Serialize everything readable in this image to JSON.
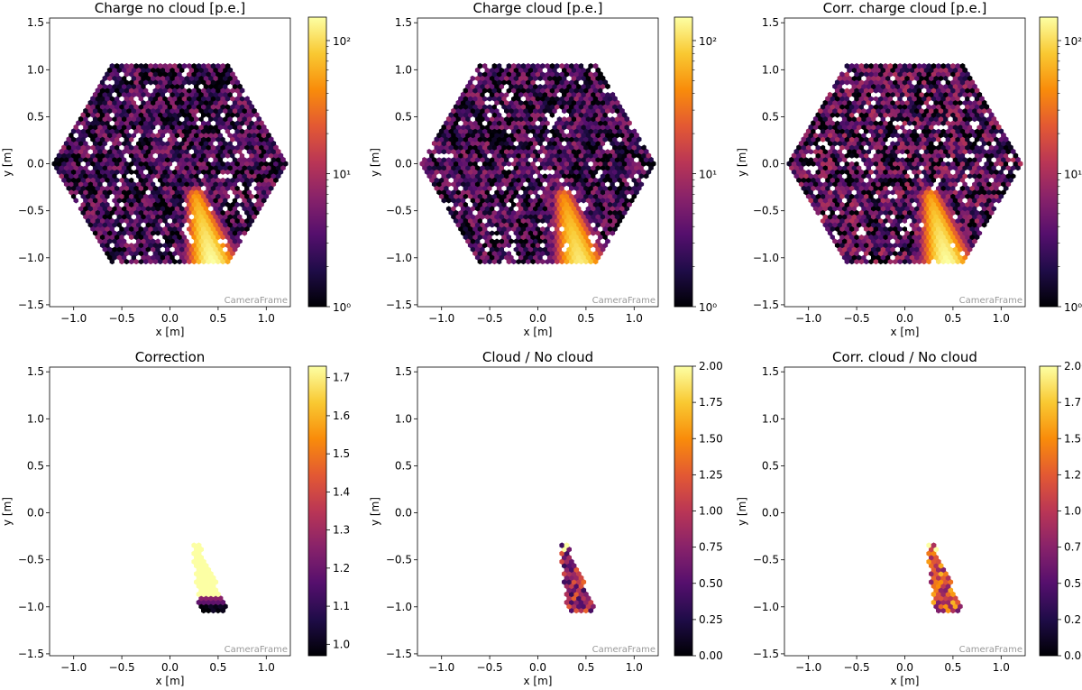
{
  "chart_data": [
    {
      "type": "heatmap",
      "title": "Charge no cloud [p.e.]",
      "xlabel": "x [m]",
      "ylabel": "y [m]",
      "xlim": [
        -1.25,
        1.25
      ],
      "ylim": [
        -1.52,
        1.55
      ],
      "xticks": [
        -1.0,
        -0.5,
        0.0,
        0.5,
        1.0
      ],
      "xtick_labels": [
        "−1.0",
        "−0.5",
        "0.0",
        "0.5",
        "1.0"
      ],
      "yticks": [
        -1.5,
        -1.0,
        -0.5,
        0.0,
        0.5,
        1.0,
        1.5
      ],
      "ytick_labels": [
        "−1.5",
        "−1.0",
        "−0.5",
        "0.0",
        "0.5",
        "1.0",
        "1.5"
      ],
      "annotation": "CameraFrame",
      "colorbar": {
        "scale": "log",
        "range": [
          1,
          150
        ],
        "ticks": [
          1,
          10,
          100
        ],
        "tick_labels": [
          "10⁰",
          "10¹",
          "10²"
        ],
        "colormap": "inferno"
      },
      "camera": {
        "shape": "hexagon",
        "radius": 1.23,
        "pixel_spacing": 0.05
      },
      "image_track": {
        "from": [
          0.27,
          -0.35
        ],
        "to": [
          0.44,
          -1.05
        ],
        "peak_value": 150
      },
      "noise_level": 2.5
    },
    {
      "type": "heatmap",
      "title": "Charge cloud [p.e.]",
      "xlabel": "x [m]",
      "ylabel": "y [m]",
      "xlim": [
        -1.25,
        1.25
      ],
      "ylim": [
        -1.52,
        1.55
      ],
      "xticks": [
        -1.0,
        -0.5,
        0.0,
        0.5,
        1.0
      ],
      "xtick_labels": [
        "−1.0",
        "−0.5",
        "0.0",
        "0.5",
        "1.0"
      ],
      "yticks": [
        -1.5,
        -1.0,
        -0.5,
        0.0,
        0.5,
        1.0,
        1.5
      ],
      "ytick_labels": [
        "−1.5",
        "−1.0",
        "−0.5",
        "0.0",
        "0.5",
        "1.0",
        "1.5"
      ],
      "annotation": "CameraFrame",
      "colorbar": {
        "scale": "log",
        "range": [
          1,
          150
        ],
        "ticks": [
          1,
          10,
          100
        ],
        "tick_labels": [
          "10⁰",
          "10¹",
          "10²"
        ],
        "colormap": "inferno"
      },
      "camera": {
        "shape": "hexagon",
        "radius": 1.23,
        "pixel_spacing": 0.05
      },
      "image_track": {
        "from": [
          0.27,
          -0.35
        ],
        "to": [
          0.44,
          -1.05
        ],
        "peak_value": 120
      },
      "noise_level": 2.5
    },
    {
      "type": "heatmap",
      "title": "Corr. charge cloud [p.e.]",
      "xlabel": "x [m]",
      "ylabel": "y [m]",
      "xlim": [
        -1.25,
        1.25
      ],
      "ylim": [
        -1.52,
        1.55
      ],
      "xticks": [
        -1.0,
        -0.5,
        0.0,
        0.5,
        1.0
      ],
      "xtick_labels": [
        "−1.0",
        "−0.5",
        "0.0",
        "0.5",
        "1.0"
      ],
      "yticks": [
        -1.5,
        -1.0,
        -0.5,
        0.0,
        0.5,
        1.0,
        1.5
      ],
      "ytick_labels": [
        "−1.5",
        "−1.0",
        "−0.5",
        "0.0",
        "0.5",
        "1.0",
        "1.5"
      ],
      "annotation": "CameraFrame",
      "colorbar": {
        "scale": "log",
        "range": [
          1,
          150
        ],
        "ticks": [
          1,
          10,
          100
        ],
        "tick_labels": [
          "10⁰",
          "10¹",
          "10²"
        ],
        "colormap": "inferno"
      },
      "camera": {
        "shape": "hexagon",
        "radius": 1.23,
        "pixel_spacing": 0.05
      },
      "image_track": {
        "from": [
          0.27,
          -0.35
        ],
        "to": [
          0.44,
          -1.05
        ],
        "peak_value": 150
      },
      "noise_level": 3.5
    },
    {
      "type": "heatmap",
      "title": "Correction",
      "xlabel": "x [m]",
      "ylabel": "y [m]",
      "xlim": [
        -1.25,
        1.25
      ],
      "ylim": [
        -1.52,
        1.55
      ],
      "xticks": [
        -1.0,
        -0.5,
        0.0,
        0.5,
        1.0
      ],
      "xtick_labels": [
        "−1.0",
        "−0.5",
        "0.0",
        "0.5",
        "1.0"
      ],
      "yticks": [
        -1.5,
        -1.0,
        -0.5,
        0.0,
        0.5,
        1.0,
        1.5
      ],
      "ytick_labels": [
        "−1.5",
        "−1.0",
        "−0.5",
        "0.0",
        "0.5",
        "1.0",
        "1.5"
      ],
      "annotation": "CameraFrame",
      "colorbar": {
        "scale": "linear",
        "range": [
          0.97,
          1.73
        ],
        "ticks": [
          1.0,
          1.1,
          1.2,
          1.3,
          1.4,
          1.5,
          1.6,
          1.7
        ],
        "tick_labels": [
          "1.0",
          "1.1",
          "1.2",
          "1.3",
          "1.4",
          "1.5",
          "1.6",
          "1.7"
        ],
        "colormap": "inferno"
      },
      "region": {
        "from": [
          0.27,
          -0.37
        ],
        "to": [
          0.44,
          -1.0
        ]
      },
      "region_values": {
        "high": 1.73,
        "high_above_y": -0.88,
        "gradient_from": 1.0,
        "gradient_to": 1.3
      }
    },
    {
      "type": "heatmap",
      "title": "Cloud / No cloud",
      "xlabel": "x [m]",
      "ylabel": "y [m]",
      "xlim": [
        -1.25,
        1.25
      ],
      "ylim": [
        -1.52,
        1.55
      ],
      "xticks": [
        -1.0,
        -0.5,
        0.0,
        0.5,
        1.0
      ],
      "xtick_labels": [
        "−1.0",
        "−0.5",
        "0.0",
        "0.5",
        "1.0"
      ],
      "yticks": [
        -1.5,
        -1.0,
        -0.5,
        0.0,
        0.5,
        1.0,
        1.5
      ],
      "ytick_labels": [
        "−1.5",
        "−1.0",
        "−0.5",
        "0.0",
        "0.5",
        "1.0",
        "1.5"
      ],
      "annotation": "CameraFrame",
      "colorbar": {
        "scale": "linear",
        "range": [
          0,
          2
        ],
        "ticks": [
          0,
          0.25,
          0.5,
          0.75,
          1.0,
          1.25,
          1.5,
          1.75,
          2.0
        ],
        "tick_labels": [
          "0.00",
          "0.25",
          "0.50",
          "0.75",
          "1.00",
          "1.25",
          "1.50",
          "1.75",
          "2.00"
        ],
        "colormap": "inferno"
      },
      "region": {
        "from": [
          0.27,
          -0.37
        ],
        "to": [
          0.44,
          -1.0
        ]
      },
      "region_values": {
        "mean": 0.85,
        "spread": 0.5
      }
    },
    {
      "type": "heatmap",
      "title": "Corr. cloud / No cloud",
      "xlabel": "x [m]",
      "ylabel": "y [m]",
      "xlim": [
        -1.25,
        1.25
      ],
      "ylim": [
        -1.52,
        1.55
      ],
      "xticks": [
        -1.0,
        -0.5,
        0.0,
        0.5,
        1.0
      ],
      "xtick_labels": [
        "−1.0",
        "−0.5",
        "0.0",
        "0.5",
        "1.0"
      ],
      "yticks": [
        -1.5,
        -1.0,
        -0.5,
        0.0,
        0.5,
        1.0,
        1.5
      ],
      "ytick_labels": [
        "−1.5",
        "−1.0",
        "−0.5",
        "0.0",
        "0.5",
        "1.0",
        "1.5"
      ],
      "annotation": "CameraFrame",
      "colorbar": {
        "scale": "linear",
        "range": [
          0,
          2
        ],
        "ticks": [
          0,
          0.25,
          0.5,
          0.75,
          1.0,
          1.25,
          1.5,
          1.75,
          2.0
        ],
        "tick_labels": [
          "0.00",
          "0.25",
          "0.50",
          "0.75",
          "1.00",
          "1.25",
          "1.50",
          "1.75",
          "2.00"
        ],
        "colormap": "inferno"
      },
      "region": {
        "from": [
          0.27,
          -0.37
        ],
        "to": [
          0.44,
          -1.0
        ]
      },
      "region_values": {
        "mean": 1.15,
        "spread": 0.55
      }
    }
  ]
}
